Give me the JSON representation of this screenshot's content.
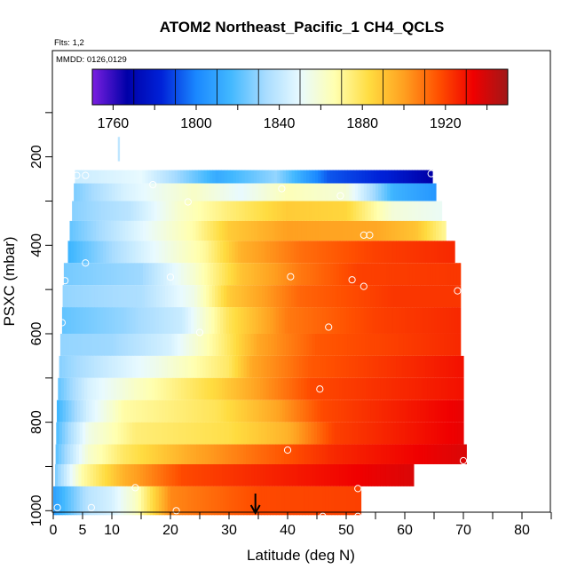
{
  "chart_data": {
    "type": "heatmap",
    "title": "ATOM2 Northeast_Pacific_1 CH4_QCLS",
    "annotations": [
      "Flts: 1,2",
      "MMDD: 0126,0129"
    ],
    "xlabel": "Latitude (deg N)",
    "ylabel": "PSXC (mbar)",
    "xlim": [
      0,
      85
    ],
    "ylim": [
      1010,
      0
    ],
    "x_ticks": [
      0,
      5,
      10,
      20,
      30,
      40,
      50,
      60,
      70,
      80
    ],
    "y_ticks": [
      200,
      400,
      600,
      800,
      1000
    ],
    "colorbar": {
      "range": [
        1750,
        1950
      ],
      "ticks": [
        1760,
        1800,
        1840,
        1880,
        1920
      ],
      "colors": [
        "#7b1fe0",
        "#0000a8",
        "#0022d8",
        "#1a88ff",
        "#42b8ff",
        "#a8dcff",
        "#e8faff",
        "#ffffb0",
        "#ffdc40",
        "#ffa020",
        "#ff5000",
        "#f00000",
        "#a01818"
      ]
    },
    "layers": [
      {
        "p_top": 230,
        "p_bot": 260,
        "x0": 3.7,
        "x1": 64.7,
        "stops": [
          [
            3.7,
            1842
          ],
          [
            15,
            1850
          ],
          [
            28,
            1812
          ],
          [
            38,
            1830
          ],
          [
            47,
            1792
          ],
          [
            57,
            1782
          ],
          [
            64.7,
            1766
          ]
        ]
      },
      {
        "p_top": 260,
        "p_bot": 300,
        "x0": 3.5,
        "x1": 65.3,
        "stops": [
          [
            3.5,
            1826
          ],
          [
            12,
            1845
          ],
          [
            24,
            1862
          ],
          [
            32,
            1850
          ],
          [
            40,
            1865
          ],
          [
            50,
            1858
          ],
          [
            58,
            1815
          ],
          [
            65.3,
            1805
          ]
        ]
      },
      {
        "p_top": 300,
        "p_bot": 345,
        "x0": 3.2,
        "x1": 66.3,
        "stops": [
          [
            3.2,
            1828
          ],
          [
            13,
            1838
          ],
          [
            22,
            1862
          ],
          [
            30,
            1875
          ],
          [
            40,
            1888
          ],
          [
            50,
            1885
          ],
          [
            58,
            1858
          ],
          [
            66.3,
            1852
          ]
        ]
      },
      {
        "p_top": 345,
        "p_bot": 390,
        "x0": 2.8,
        "x1": 67.0,
        "stops": [
          [
            2.8,
            1822
          ],
          [
            12,
            1842
          ],
          [
            24,
            1868
          ],
          [
            30,
            1888
          ],
          [
            40,
            1900
          ],
          [
            55,
            1898
          ],
          [
            62,
            1890
          ],
          [
            67,
            1870
          ]
        ]
      },
      {
        "p_top": 390,
        "p_bot": 440,
        "x0": 2.5,
        "x1": 68.5,
        "stops": [
          [
            2.5,
            1815
          ],
          [
            12,
            1838
          ],
          [
            26,
            1870
          ],
          [
            32,
            1895
          ],
          [
            42,
            1910
          ],
          [
            55,
            1920
          ],
          [
            68.5,
            1925
          ]
        ]
      },
      {
        "p_top": 440,
        "p_bot": 490,
        "x0": 1.8,
        "x1": 69.5,
        "stops": [
          [
            1.8,
            1825
          ],
          [
            15,
            1832
          ],
          [
            24,
            1860
          ],
          [
            32,
            1890
          ],
          [
            42,
            1908
          ],
          [
            52,
            1920
          ],
          [
            69.5,
            1922
          ]
        ]
      },
      {
        "p_top": 490,
        "p_bot": 540,
        "x0": 1.6,
        "x1": 69.5,
        "stops": [
          [
            1.6,
            1830
          ],
          [
            15,
            1835
          ],
          [
            24,
            1855
          ],
          [
            30,
            1888
          ],
          [
            42,
            1912
          ],
          [
            58,
            1922
          ],
          [
            69.5,
            1922
          ]
        ]
      },
      {
        "p_top": 540,
        "p_bot": 600,
        "x0": 1.5,
        "x1": 69.5,
        "stops": [
          [
            1.5,
            1822
          ],
          [
            12,
            1830
          ],
          [
            22,
            1842
          ],
          [
            30,
            1880
          ],
          [
            40,
            1908
          ],
          [
            55,
            1920
          ],
          [
            69.5,
            1925
          ]
        ]
      },
      {
        "p_top": 600,
        "p_bot": 650,
        "x0": 1.2,
        "x1": 69.5,
        "stops": [
          [
            1.2,
            1830
          ],
          [
            10,
            1832
          ],
          [
            20,
            1845
          ],
          [
            29,
            1875
          ],
          [
            35,
            1898
          ],
          [
            45,
            1915
          ],
          [
            69.5,
            1925
          ]
        ]
      },
      {
        "p_top": 650,
        "p_bot": 700,
        "x0": 1.0,
        "x1": 70.0,
        "stops": [
          [
            1.0,
            1828
          ],
          [
            8,
            1840
          ],
          [
            18,
            1855
          ],
          [
            30,
            1878
          ],
          [
            34,
            1898
          ],
          [
            44,
            1915
          ],
          [
            70,
            1930
          ]
        ]
      },
      {
        "p_top": 700,
        "p_bot": 750,
        "x0": 0.8,
        "x1": 70.0,
        "stops": [
          [
            0.8,
            1822
          ],
          [
            6,
            1845
          ],
          [
            14,
            1862
          ],
          [
            28,
            1885
          ],
          [
            36,
            1902
          ],
          [
            44,
            1918
          ],
          [
            70,
            1930
          ]
        ]
      },
      {
        "p_top": 750,
        "p_bot": 800,
        "x0": 0.6,
        "x1": 70.0,
        "stops": [
          [
            0.6,
            1815
          ],
          [
            6,
            1845
          ],
          [
            12,
            1868
          ],
          [
            28,
            1880
          ],
          [
            38,
            1898
          ],
          [
            46,
            1918
          ],
          [
            70,
            1935
          ]
        ]
      },
      {
        "p_top": 800,
        "p_bot": 850,
        "x0": 0.5,
        "x1": 70.0,
        "stops": [
          [
            0.5,
            1818
          ],
          [
            6,
            1855
          ],
          [
            14,
            1875
          ],
          [
            30,
            1882
          ],
          [
            40,
            1895
          ],
          [
            48,
            1920
          ],
          [
            70,
            1935
          ]
        ]
      },
      {
        "p_top": 850,
        "p_bot": 895,
        "x0": 0.4,
        "x1": 70.5,
        "stops": [
          [
            0.4,
            1820
          ],
          [
            6,
            1860
          ],
          [
            12,
            1878
          ],
          [
            24,
            1898
          ],
          [
            36,
            1912
          ],
          [
            48,
            1925
          ],
          [
            70.5,
            1938
          ]
        ]
      },
      {
        "p_top": 895,
        "p_bot": 945,
        "x0": 0.3,
        "x1": 61.5,
        "stops": [
          [
            0.3,
            1825
          ],
          [
            5,
            1868
          ],
          [
            12,
            1895
          ],
          [
            22,
            1918
          ],
          [
            35,
            1925
          ],
          [
            61.5,
            1938
          ]
        ]
      },
      {
        "p_top": 945,
        "p_bot": 1010,
        "x0": 0.0,
        "x1": 52.5,
        "stops": [
          [
            0,
            1808
          ],
          [
            6,
            1838
          ],
          [
            10,
            1845
          ],
          [
            14,
            1862
          ],
          [
            20,
            1905
          ],
          [
            35,
            1918
          ],
          [
            52.5,
            1920
          ]
        ]
      }
    ],
    "sample_points": [
      [
        4,
        242
      ],
      [
        5.5,
        242
      ],
      [
        17,
        263
      ],
      [
        23,
        302
      ],
      [
        39,
        272
      ],
      [
        49,
        288
      ],
      [
        64.5,
        238
      ],
      [
        53,
        377
      ],
      [
        54,
        377
      ],
      [
        5.5,
        440
      ],
      [
        20,
        472
      ],
      [
        40.5,
        471
      ],
      [
        51,
        478
      ],
      [
        53,
        493
      ],
      [
        69,
        503
      ],
      [
        2,
        480
      ],
      [
        1.5,
        575
      ],
      [
        25,
        597
      ],
      [
        47,
        585
      ],
      [
        45.5,
        725
      ],
      [
        40,
        863
      ],
      [
        70,
        887
      ],
      [
        14,
        948
      ],
      [
        52,
        950
      ],
      [
        0.7,
        993
      ],
      [
        6.5,
        993
      ],
      [
        21,
        1000
      ],
      [
        46,
        1013
      ],
      [
        52,
        1013
      ]
    ],
    "arrow_marker": {
      "latitude": 34.5
    },
    "top_marker": {
      "latitude": 11.2,
      "pressure_range": [
        155,
        210
      ]
    }
  }
}
